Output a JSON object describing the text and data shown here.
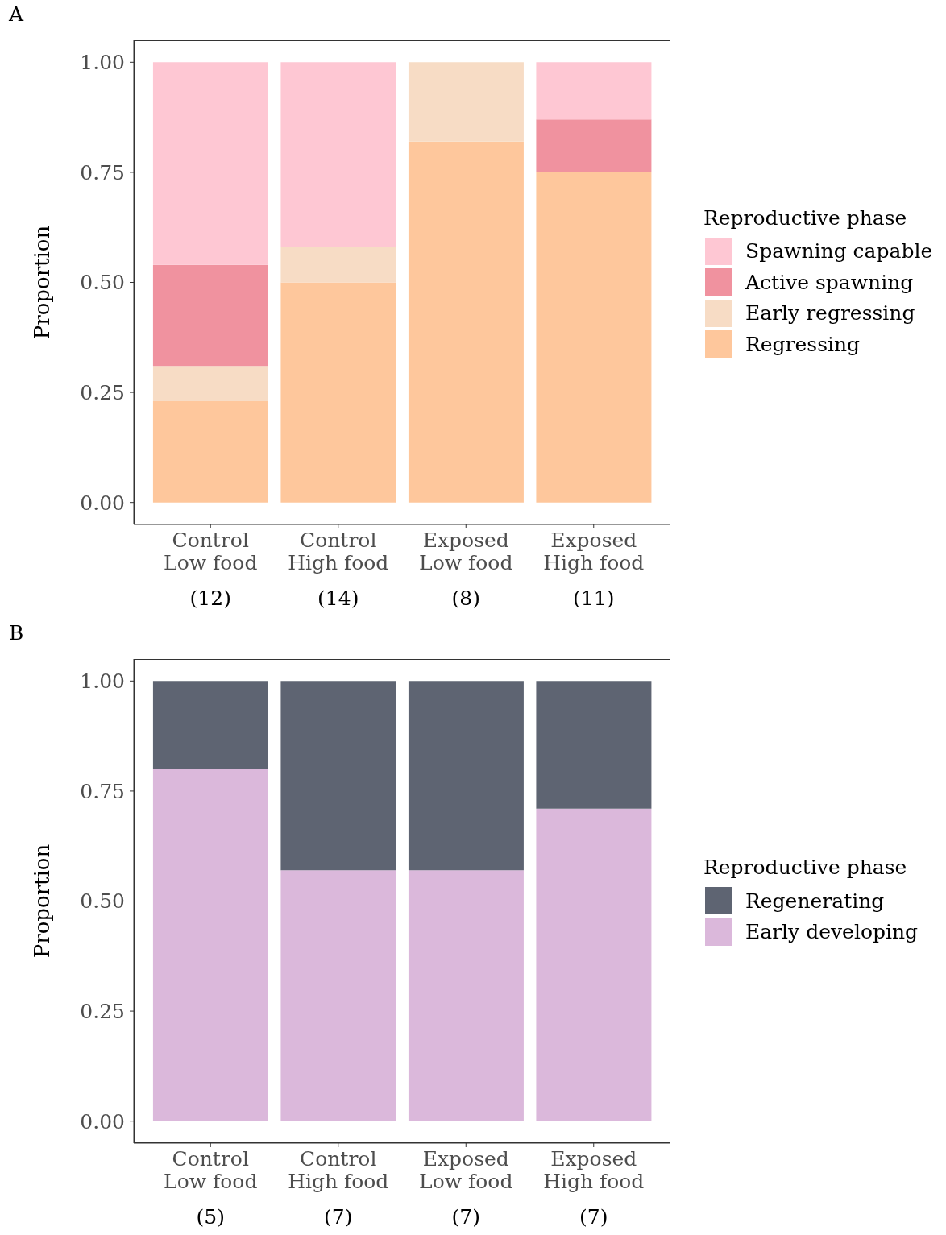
{
  "chart_data": [
    {
      "type": "bar",
      "title": "A",
      "ylabel": "Proportion",
      "legend_title": "Reproductive phase",
      "legend": "right",
      "stacked": true,
      "categories": [
        "Control\nLow food",
        "Control\nHigh food",
        "Exposed\nLow food",
        "Exposed\nHigh food"
      ],
      "series": [
        {
          "name": "Regressing",
          "color": "#fec79c",
          "values": [
            0.23,
            0.5,
            0.82,
            0.75
          ]
        },
        {
          "name": "Early regressing",
          "color": "#f7dcc5",
          "values": [
            0.08,
            0.08,
            0.18,
            null
          ]
        },
        {
          "name": "Active spawning",
          "color": "#f0929f",
          "values": [
            0.23,
            null,
            null,
            0.12
          ]
        },
        {
          "name": "Spawning capable",
          "color": "#fec7d3",
          "values": [
            0.46,
            0.42,
            null,
            0.13
          ]
        }
      ],
      "ylim": [
        -0.05,
        1.05
      ],
      "yticks": [
        {
          "value": 0,
          "label": "0.00"
        },
        {
          "value": 0.25,
          "label": "0.25"
        },
        {
          "value": 0.5,
          "label": "0.50"
        },
        {
          "value": 0.75,
          "label": "0.75"
        },
        {
          "value": 1,
          "label": "1.00"
        }
      ],
      "annotations": [
        "(12)",
        "(14)",
        "(8)",
        "(11)"
      ]
    },
    {
      "type": "bar",
      "title": "B",
      "ylabel": "Proportion",
      "legend_title": "Reproductive phase",
      "legend": "right",
      "stacked": true,
      "categories": [
        "Control\nLow food",
        "Control\nHigh food",
        "Exposed\nLow food",
        "Exposed\nHigh food"
      ],
      "series": [
        {
          "name": "Early developing",
          "color": "#dbb8db",
          "values": [
            0.8,
            0.57,
            0.57,
            0.71
          ]
        },
        {
          "name": "Regenerating",
          "color": "#5e6472",
          "values": [
            0.2,
            0.43,
            0.43,
            0.29
          ]
        }
      ],
      "ylim": [
        -0.05,
        1.05
      ],
      "yticks": [
        {
          "value": 0,
          "label": "0.00"
        },
        {
          "value": 0.25,
          "label": "0.25"
        },
        {
          "value": 0.5,
          "label": "0.50"
        },
        {
          "value": 0.75,
          "label": "0.75"
        },
        {
          "value": 1,
          "label": "1.00"
        }
      ],
      "annotations": [
        "(5)",
        "(7)",
        "(7)",
        "(7)"
      ]
    }
  ]
}
